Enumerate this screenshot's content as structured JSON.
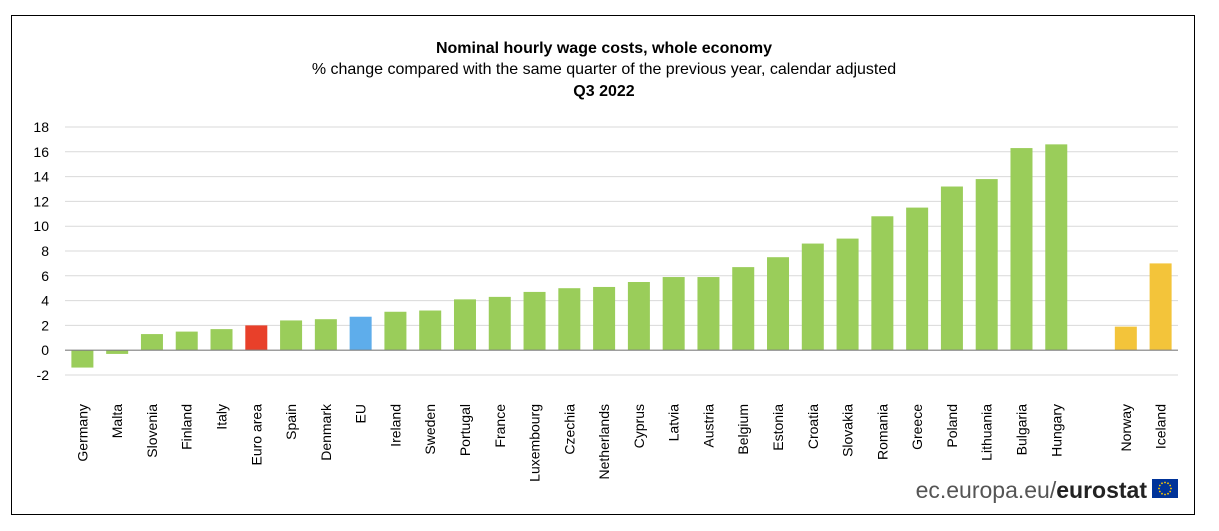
{
  "chart_data": {
    "type": "bar",
    "title": "Nominal hourly wage costs, whole economy",
    "subtitle": "% change compared with the same quarter of the previous year, calendar adjusted",
    "period": "Q3 2022",
    "xlabel": "",
    "ylabel": "",
    "ylim": [
      -2,
      18
    ],
    "yticks": [
      "-2",
      "0",
      "2",
      "4",
      "6",
      "8",
      "10",
      "12",
      "14",
      "16",
      "18"
    ],
    "grid": true,
    "legend": "none",
    "categories": [
      "Germany",
      "Malta",
      "Slovenia",
      "Finland",
      "Italy",
      "Euro area",
      "Spain",
      "Denmark",
      "EU",
      "Ireland",
      "Sweden",
      "Portugal",
      "France",
      "Luxembourg",
      "Czechia",
      "Netherlands",
      "Cyprus",
      "Latvia",
      "Austria",
      "Belgium",
      "Estonia",
      "Croatia",
      "Slovakia",
      "Romania",
      "Greece",
      "Poland",
      "Lithuania",
      "Bulgaria",
      "Hungary",
      "Norway",
      "Iceland"
    ],
    "values": [
      -1.4,
      -0.3,
      1.3,
      1.5,
      1.7,
      2.0,
      2.4,
      2.5,
      2.7,
      3.1,
      3.2,
      4.1,
      4.3,
      4.7,
      5.0,
      5.1,
      5.5,
      5.9,
      5.9,
      6.7,
      7.5,
      8.6,
      9.0,
      10.8,
      11.5,
      13.2,
      13.8,
      16.3,
      16.6,
      1.9,
      7.0
    ],
    "colors": {
      "member": "#9ACD5A",
      "euro_area": "#E8402A",
      "eu": "#5EADEB",
      "efta": "#F3C43A"
    },
    "gap_before": "Norway"
  },
  "source": {
    "text": "ec.europa.eu/",
    "bold": "eurostat",
    "logo": "eu-flag-icon"
  }
}
